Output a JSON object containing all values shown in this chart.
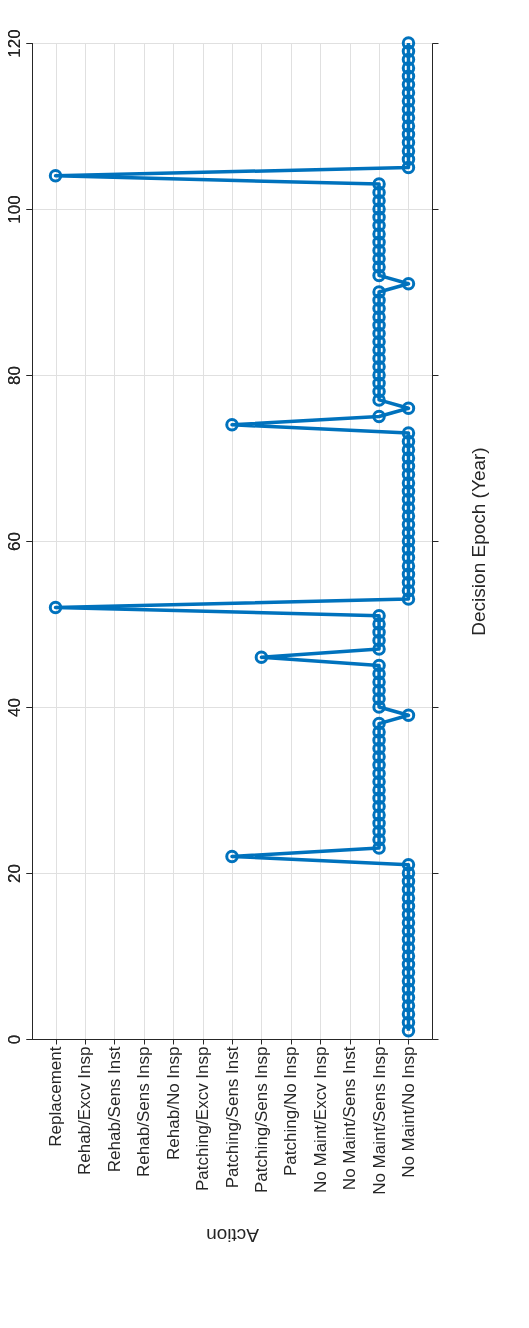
{
  "chart_data": {
    "type": "line",
    "categories": [
      "Replacement",
      "Rehab/Excv Insp",
      "Rehab/Sens Inst",
      "Rehab/Sens Insp",
      "Rehab/No Insp",
      "Patching/Excv Insp",
      "Patching/Sens Inst",
      "Patching/Sens Insp",
      "Patching/No Insp",
      "No Maint/Excv Insp",
      "No Maint/Sens Inst",
      "No Maint/Sens Insp",
      "No Maint/No Insp"
    ],
    "series": [
      {
        "color": "#0072bd",
        "x": [
          "No Maint/No Insp",
          "No Maint/No Insp",
          "No Maint/No Insp",
          "No Maint/No Insp",
          "No Maint/No Insp",
          "No Maint/No Insp",
          "No Maint/No Insp",
          "No Maint/No Insp",
          "No Maint/No Insp",
          "No Maint/No Insp",
          "No Maint/No Insp",
          "No Maint/No Insp",
          "No Maint/No Insp",
          "No Maint/No Insp",
          "No Maint/No Insp",
          "No Maint/No Insp",
          "No Maint/No Insp",
          "No Maint/No Insp",
          "No Maint/No Insp",
          "No Maint/No Insp",
          "No Maint/No Insp",
          "Patching/Sens Inst",
          "No Maint/Sens Insp",
          "No Maint/Sens Insp",
          "No Maint/Sens Insp",
          "No Maint/Sens Insp",
          "No Maint/Sens Insp",
          "No Maint/Sens Insp",
          "No Maint/Sens Insp",
          "No Maint/Sens Insp",
          "No Maint/Sens Insp",
          "No Maint/Sens Insp",
          "No Maint/Sens Insp",
          "No Maint/Sens Insp",
          "No Maint/Sens Insp",
          "No Maint/Sens Insp",
          "No Maint/Sens Insp",
          "No Maint/Sens Insp",
          "No Maint/No Insp",
          "No Maint/Sens Insp",
          "No Maint/Sens Insp",
          "No Maint/Sens Insp",
          "No Maint/Sens Insp",
          "No Maint/Sens Insp",
          "No Maint/Sens Insp",
          "Patching/Sens Insp",
          "No Maint/Sens Insp",
          "No Maint/Sens Insp",
          "No Maint/Sens Insp",
          "No Maint/Sens Insp",
          "No Maint/Sens Insp",
          "Replacement",
          "No Maint/No Insp",
          "No Maint/No Insp",
          "No Maint/No Insp",
          "No Maint/No Insp",
          "No Maint/No Insp",
          "No Maint/No Insp",
          "No Maint/No Insp",
          "No Maint/No Insp",
          "No Maint/No Insp",
          "No Maint/No Insp",
          "No Maint/No Insp",
          "No Maint/No Insp",
          "No Maint/No Insp",
          "No Maint/No Insp",
          "No Maint/No Insp",
          "No Maint/No Insp",
          "No Maint/No Insp",
          "No Maint/No Insp",
          "No Maint/No Insp",
          "No Maint/No Insp",
          "No Maint/No Insp",
          "Patching/Sens Inst",
          "No Maint/Sens Insp",
          "No Maint/No Insp",
          "No Maint/Sens Insp",
          "No Maint/Sens Insp",
          "No Maint/Sens Insp",
          "No Maint/Sens Insp",
          "No Maint/Sens Insp",
          "No Maint/Sens Insp",
          "No Maint/Sens Insp",
          "No Maint/Sens Insp",
          "No Maint/Sens Insp",
          "No Maint/Sens Insp",
          "No Maint/Sens Insp",
          "No Maint/Sens Insp",
          "No Maint/Sens Insp",
          "No Maint/Sens Insp",
          "No Maint/No Insp",
          "No Maint/Sens Insp",
          "No Maint/Sens Insp",
          "No Maint/Sens Insp",
          "No Maint/Sens Insp",
          "No Maint/Sens Insp",
          "No Maint/Sens Insp",
          "No Maint/Sens Insp",
          "No Maint/Sens Insp",
          "No Maint/Sens Insp",
          "No Maint/Sens Insp",
          "No Maint/Sens Insp",
          "No Maint/Sens Insp",
          "Replacement",
          "No Maint/No Insp",
          "No Maint/No Insp",
          "No Maint/No Insp",
          "No Maint/No Insp",
          "No Maint/No Insp",
          "No Maint/No Insp",
          "No Maint/No Insp",
          "No Maint/No Insp",
          "No Maint/No Insp",
          "No Maint/No Insp",
          "No Maint/No Insp",
          "No Maint/No Insp",
          "No Maint/No Insp",
          "No Maint/No Insp",
          "No Maint/No Insp",
          "No Maint/No Insp"
        ],
        "values": [
          1,
          2,
          3,
          4,
          5,
          6,
          7,
          8,
          9,
          10,
          11,
          12,
          13,
          14,
          15,
          16,
          17,
          18,
          19,
          20,
          21,
          22,
          23,
          24,
          25,
          26,
          27,
          28,
          29,
          30,
          31,
          32,
          33,
          34,
          35,
          36,
          37,
          38,
          39,
          40,
          41,
          42,
          43,
          44,
          45,
          46,
          47,
          48,
          49,
          50,
          51,
          52,
          53,
          54,
          55,
          56,
          57,
          58,
          59,
          60,
          61,
          62,
          63,
          64,
          65,
          66,
          67,
          68,
          69,
          70,
          71,
          72,
          73,
          74,
          75,
          76,
          77,
          78,
          79,
          80,
          81,
          82,
          83,
          84,
          85,
          86,
          87,
          88,
          89,
          90,
          91,
          92,
          93,
          94,
          95,
          96,
          97,
          98,
          99,
          100,
          101,
          102,
          103,
          104,
          105,
          106,
          107,
          108,
          109,
          110,
          111,
          112,
          113,
          114,
          115,
          116,
          117,
          118,
          119,
          120
        ]
      }
    ],
    "ylim": [
      0,
      120
    ],
    "yticks": [
      0,
      20,
      40,
      60,
      80,
      100,
      120
    ],
    "xlabel": "Action",
    "ylabel": "Decision Epoch (Year)",
    "grid": true,
    "marker": "circle",
    "line_style": "solid"
  }
}
